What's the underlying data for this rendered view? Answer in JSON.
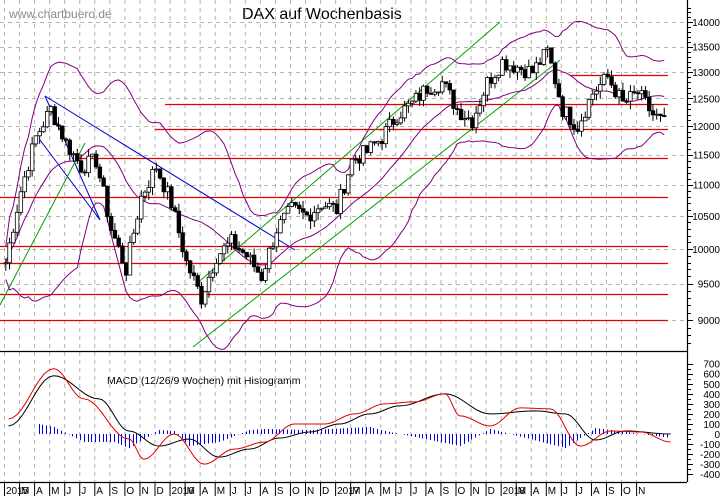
{
  "header": {
    "watermark": "www.chartbuero.de",
    "title": "DAX auf Wochenbasis"
  },
  "macd_panel": {
    "title": "MACD (12/26/9 Wochen) mit Histogramm"
  },
  "colors": {
    "background": "#ffffff",
    "grid": "#b4b4b4",
    "candle": "#000000",
    "support_resistance": "#e00000",
    "trendline_down": "#0000d0",
    "trendline_up": "#00a000",
    "bollinger": "#800080",
    "macd_line": "#e00000",
    "signal_line": "#000000",
    "histogram": "#0000e0"
  },
  "chart_data": [
    {
      "type": "candlestick",
      "title": "DAX auf Wochenbasis",
      "xlabel": "",
      "ylabel": "",
      "y_scale": "log",
      "ylim": [
        8600,
        14400
      ],
      "y_ticks": [
        9000,
        9500,
        10000,
        10500,
        11000,
        11500,
        12000,
        12500,
        13000,
        13500,
        14000
      ],
      "x_tick_labels": [
        "2015",
        "M",
        "A",
        "M",
        "J",
        "J",
        "A",
        "S",
        "O",
        "N",
        "D",
        "2016",
        "M",
        "A",
        "M",
        "J",
        "J",
        "A",
        "S",
        "O",
        "N",
        "D",
        "2017",
        "M",
        "A",
        "M",
        "J",
        "J",
        "A",
        "S",
        "O",
        "N",
        "D",
        "2018",
        "M",
        "A",
        "M",
        "J",
        "J",
        "A",
        "S",
        "O",
        "N"
      ],
      "x_range": [
        "2015-01",
        "2018-11"
      ],
      "grid": true,
      "horizontal_levels": [
        12950,
        12400,
        11950,
        11450,
        10800,
        10050,
        9800,
        9350,
        9000
      ],
      "overlays": [
        "Bollinger Bands",
        "downtrend channel 2015",
        "uptrend channel 2016-2018"
      ],
      "approx_weekly_closes": {
        "2015-01": 9800,
        "2015-02": 10900,
        "2015-03": 11800,
        "2015-04": 12300,
        "2015-05": 11700,
        "2015-06": 11300,
        "2015-07": 11400,
        "2015-08": 10300,
        "2015-09": 9700,
        "2015-10": 10800,
        "2015-11": 11300,
        "2015-12": 10700,
        "2016-01": 9800,
        "2016-02": 9300,
        "2016-03": 9900,
        "2016-04": 10100,
        "2016-05": 9900,
        "2016-06": 9600,
        "2016-07": 10300,
        "2016-08": 10600,
        "2016-09": 10500,
        "2016-10": 10700,
        "2016-11": 10600,
        "2016-12": 11400,
        "2017-01": 11550,
        "2017-02": 11800,
        "2017-03": 12200,
        "2017-04": 12400,
        "2017-05": 12700,
        "2017-06": 12800,
        "2017-07": 12300,
        "2017-08": 12100,
        "2017-09": 12800,
        "2017-10": 13200,
        "2017-11": 13100,
        "2017-12": 13000,
        "2018-01": 13400,
        "2018-02": 12300,
        "2018-03": 12000,
        "2018-04": 12600,
        "2018-05": 12900,
        "2018-06": 12400,
        "2018-07": 12600,
        "2018-08": 12200,
        "2018-09": 12000
      },
      "range_high": 13600,
      "range_low": 8700
    },
    {
      "type": "line",
      "title": "MACD (12/26/9 Wochen) mit Histogramm",
      "ylim": [
        -450,
        750
      ],
      "y_ticks": [
        700,
        600,
        500,
        400,
        300,
        200,
        100,
        0,
        -100,
        -200,
        -300,
        -400
      ],
      "series": [
        {
          "name": "MACD",
          "color": "#e00000",
          "approx_values": {
            "2015-01": 150,
            "2015-04": 650,
            "2015-06": 350,
            "2015-09": -50,
            "2015-10": -250,
            "2015-12": 0,
            "2016-02": -300,
            "2016-04": -150,
            "2016-06": -80,
            "2016-08": 100,
            "2016-10": 100,
            "2016-12": 200,
            "2017-02": 300,
            "2017-04": 320,
            "2017-06": 400,
            "2017-07": 180,
            "2017-09": 80,
            "2017-11": 260,
            "2018-01": 250,
            "2018-03": -120,
            "2018-05": 30,
            "2018-07": 20,
            "2018-09": -80
          }
        },
        {
          "name": "Signal",
          "color": "#000000",
          "approx_values": {
            "2015-01": 80,
            "2015-04": 580,
            "2015-07": 350,
            "2015-09": 30,
            "2015-11": -120,
            "2016-01": -50,
            "2016-03": -230,
            "2016-05": -150,
            "2016-07": -40,
            "2016-09": 20,
            "2016-11": 100,
            "2017-01": 200,
            "2017-03": 280,
            "2017-06": 400,
            "2017-09": 200,
            "2017-12": 230,
            "2018-02": 200,
            "2018-04": -60,
            "2018-06": 30,
            "2018-09": 0
          }
        },
        {
          "name": "Histogram",
          "color": "#0000e0",
          "type": "bar",
          "approx_values": {
            "2015-03": 100,
            "2015-04": 70,
            "2015-06": -80,
            "2015-08": -80,
            "2015-09": -140,
            "2015-11": 40,
            "2015-12": 30,
            "2016-01": -120,
            "2016-03": -80,
            "2016-05": 40,
            "2016-06": 50,
            "2016-09": 40,
            "2017-01": 70,
            "2017-02": 30,
            "2017-07": -120,
            "2017-09": 50,
            "2018-02": -140,
            "2018-04": 60,
            "2018-06": 20,
            "2018-09": -40
          }
        }
      ]
    }
  ]
}
